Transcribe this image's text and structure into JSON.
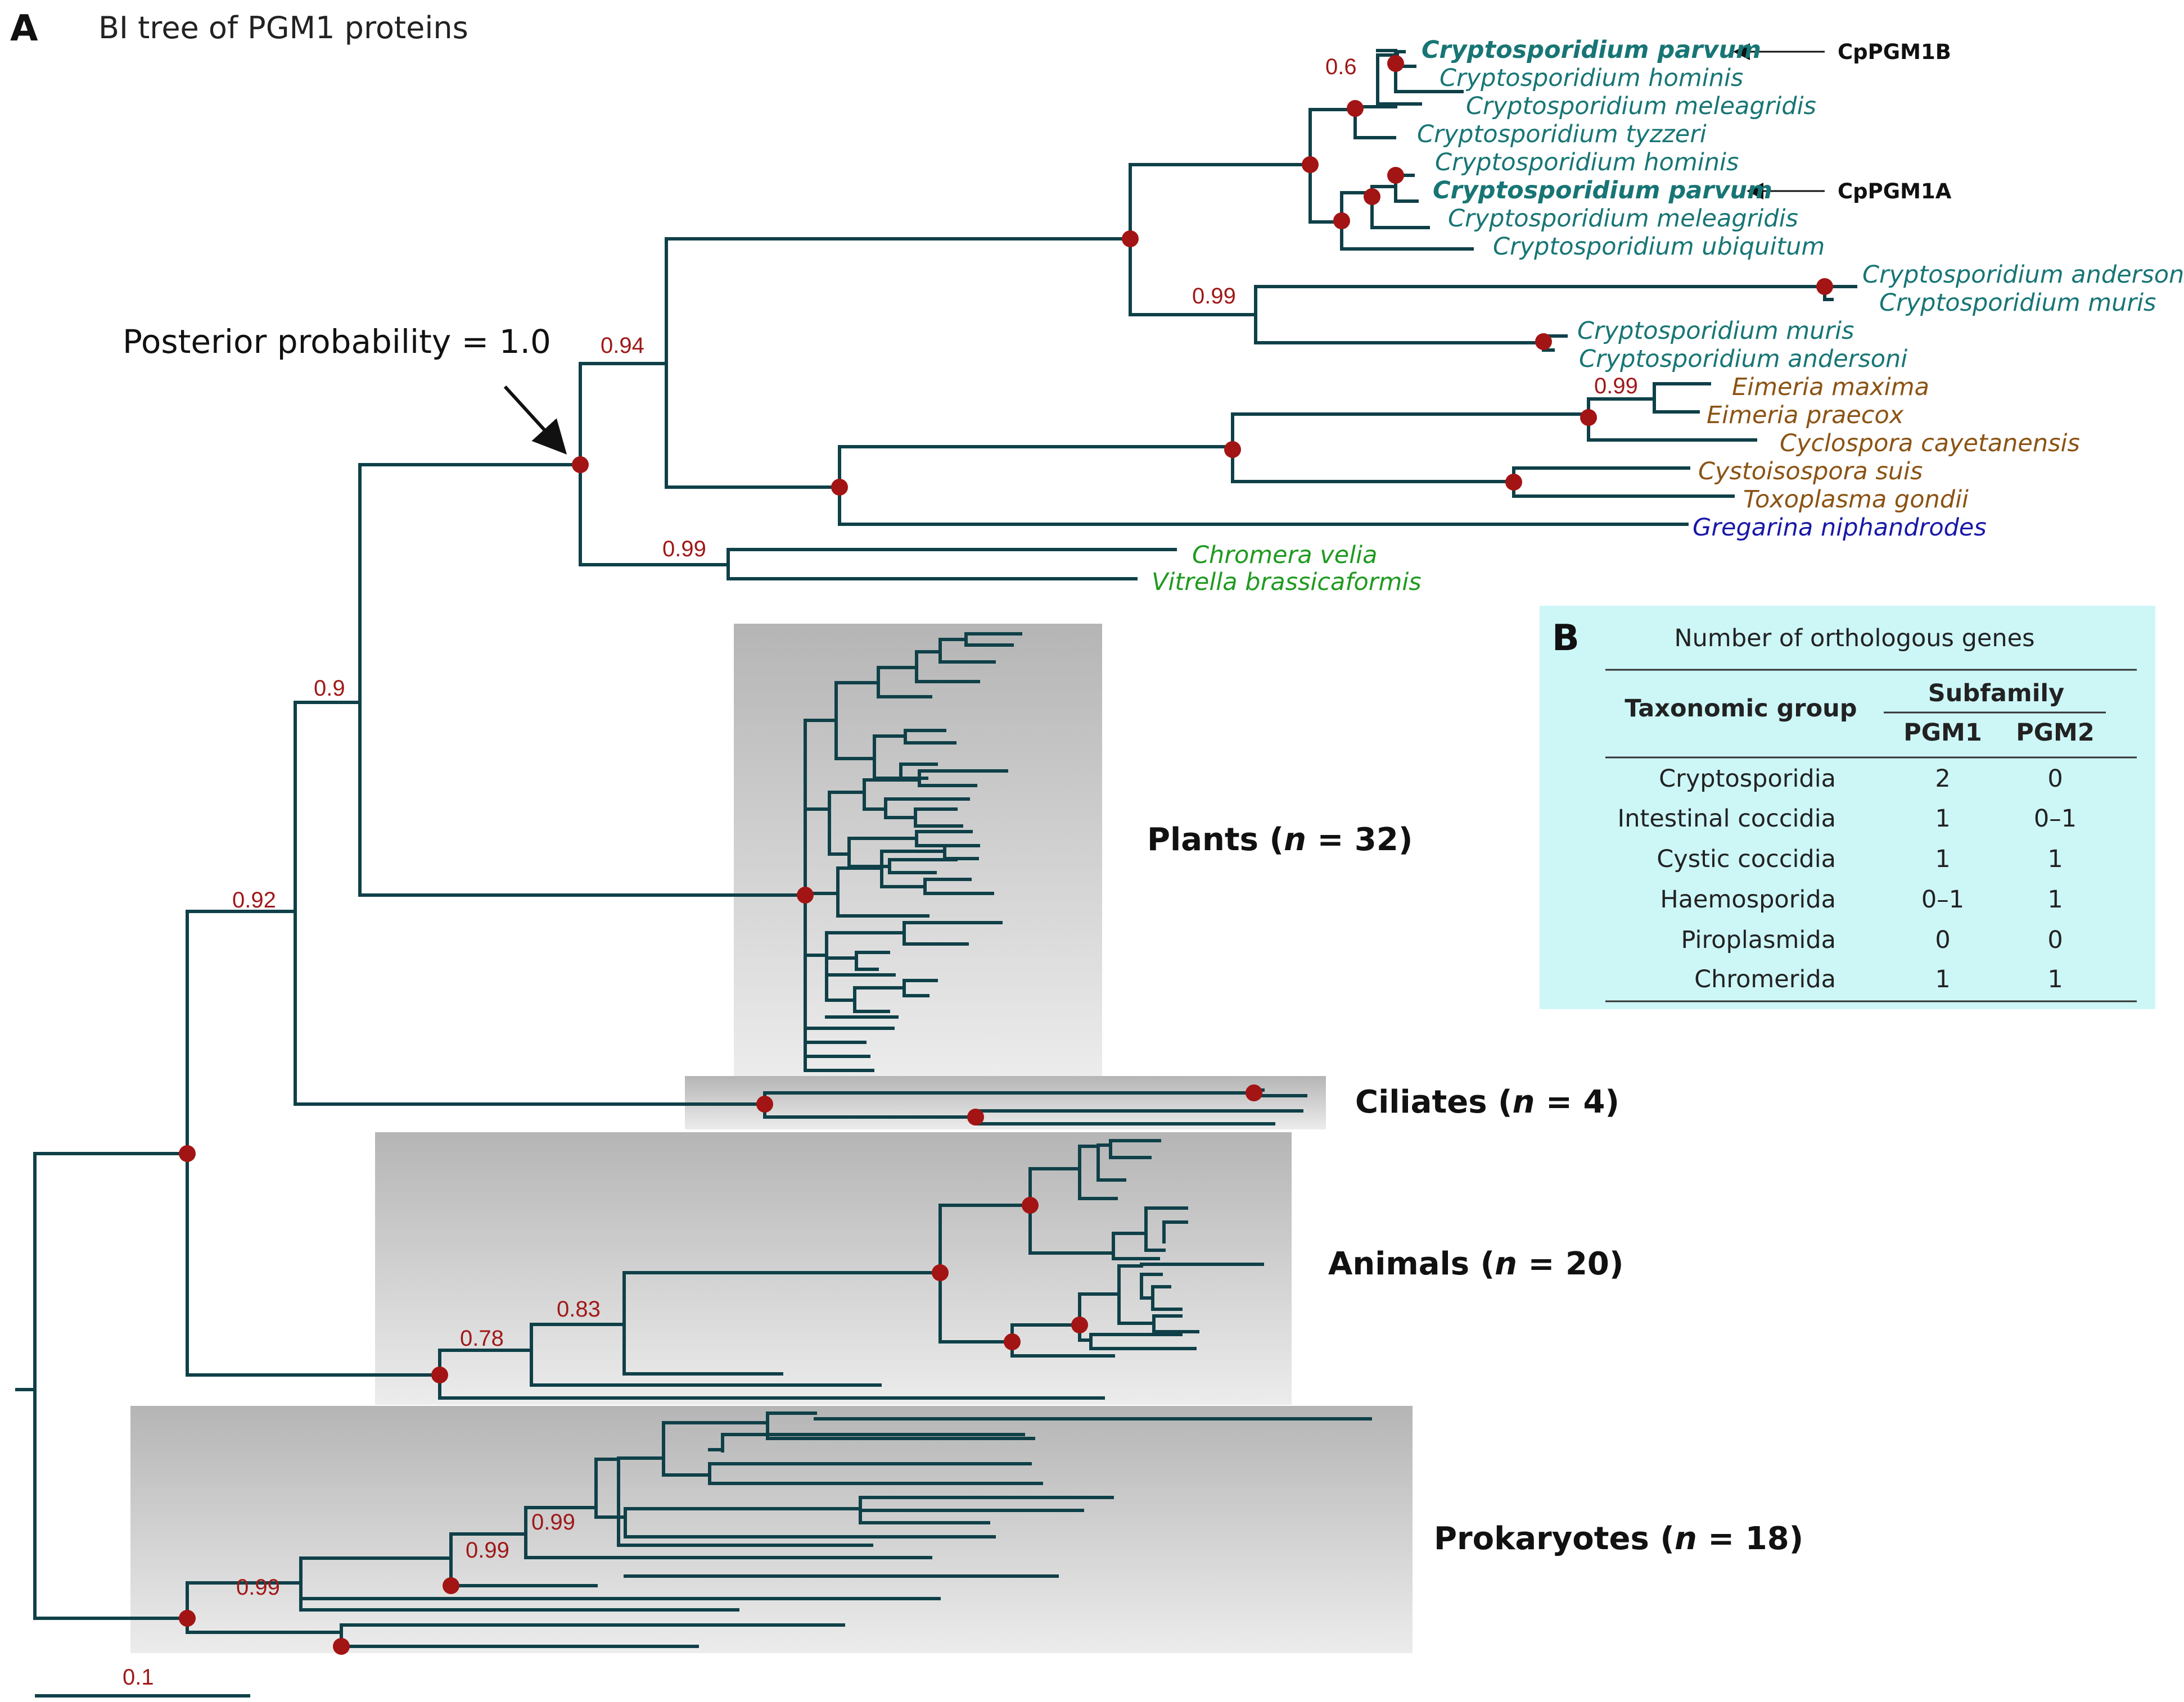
{
  "panel_a": {
    "letter": "A",
    "title": "BI tree of PGM1 proteins",
    "annotation": "Posterior probability = 1.0",
    "scale_label": "0.1",
    "support_values": {
      "crypto_b": "0.6",
      "crypto_deep": "0.99",
      "eimeria": "0.99",
      "apicomplexa": "0.94",
      "chromerids": "0.99",
      "alveolata_plants": "0.9",
      "eukaryote_core": "0.92",
      "animals_outer": "0.78",
      "animals_inner": "0.83",
      "prok_1": "0.99",
      "prok_2": "0.99",
      "prok_3": "0.99"
    },
    "taxa": [
      {
        "name": "Cryptosporidium parvum",
        "group": "crypto",
        "bold": true
      },
      {
        "name": "Cryptosporidium hominis",
        "group": "crypto"
      },
      {
        "name": "Cryptosporidium meleagridis",
        "group": "crypto"
      },
      {
        "name": "Cryptosporidium tyzzeri",
        "group": "crypto"
      },
      {
        "name": "Cryptosporidium hominis",
        "group": "crypto"
      },
      {
        "name": "Cryptosporidium parvum",
        "group": "crypto",
        "bold": true
      },
      {
        "name": "Cryptosporidium meleagridis",
        "group": "crypto"
      },
      {
        "name": "Cryptosporidium ubiquitum",
        "group": "crypto"
      },
      {
        "name": "Cryptosporidium andersoni",
        "group": "crypto"
      },
      {
        "name": "Cryptosporidium muris",
        "group": "crypto"
      },
      {
        "name": "Cryptosporidium muris",
        "group": "crypto"
      },
      {
        "name": "Cryptosporidium andersoni",
        "group": "crypto"
      },
      {
        "name": "Eimeria maxima",
        "group": "coccidia"
      },
      {
        "name": "Eimeria praecox",
        "group": "coccidia"
      },
      {
        "name": "Cyclospora cayetanensis",
        "group": "coccidia"
      },
      {
        "name": "Cystoisospora suis",
        "group": "coccidia"
      },
      {
        "name": "Toxoplasma gondii",
        "group": "coccidia"
      },
      {
        "name": "Gregarina niphandrodes",
        "group": "gregarine"
      },
      {
        "name": "Chromera velia",
        "group": "chromerid"
      },
      {
        "name": "Vitrella brassicaformis",
        "group": "chromerid"
      }
    ],
    "arrow_labels": [
      "CpPGM1B",
      "CpPGM1A"
    ],
    "clades": [
      {
        "prefix": "Plants (",
        "n": "n",
        "suffix": " = 32)"
      },
      {
        "prefix": "Ciliates (",
        "n": "n",
        "suffix": " = 4)"
      },
      {
        "prefix": "Animals (",
        "n": "n",
        "suffix": " = 20)"
      },
      {
        "prefix": "Prokaryotes (",
        "n": "n",
        "suffix": " = 18)"
      }
    ],
    "colors": {
      "branch": "#0f4048",
      "node": "#a31414",
      "support": "#a01818",
      "crypto": "#187575",
      "coccidia": "#8b5314",
      "gregarine": "#1818a8",
      "chromerid": "#1f9a1f"
    }
  },
  "panel_b": {
    "letter": "B",
    "title": "Number of orthologous genes",
    "col_group": "Taxonomic group",
    "col_subfamily": "Subfamily",
    "col_pgm1": "PGM1",
    "col_pgm2": "PGM2",
    "background": "#cdf6f7",
    "rows": [
      {
        "group": "Cryptosporidia",
        "pgm1": "2",
        "pgm2": "0"
      },
      {
        "group": "Intestinal coccidia",
        "pgm1": "1",
        "pgm2": "0–1"
      },
      {
        "group": "Cystic coccidia",
        "pgm1": "1",
        "pgm2": "1"
      },
      {
        "group": "Haemosporida",
        "pgm1": "0–1",
        "pgm2": "1"
      },
      {
        "group": "Piroplasmida",
        "pgm1": "0",
        "pgm2": "0"
      },
      {
        "group": "Chromerida",
        "pgm1": "1",
        "pgm2": "1"
      }
    ]
  }
}
